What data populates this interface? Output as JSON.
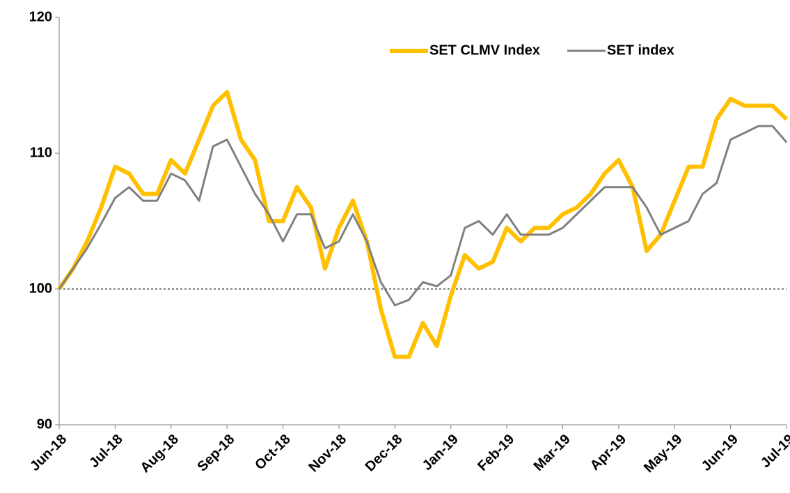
{
  "chart_data": {
    "type": "line",
    "categories": [
      "Jun-18",
      null,
      null,
      null,
      "Jul-18",
      null,
      null,
      null,
      "Aug-18",
      null,
      null,
      null,
      "Sep-18",
      null,
      null,
      null,
      "Oct-18",
      null,
      null,
      null,
      "Nov-18",
      null,
      null,
      null,
      "Dec-18",
      null,
      null,
      null,
      "Jan-19",
      null,
      null,
      null,
      "Feb-19",
      null,
      null,
      null,
      "Mar-19",
      null,
      null,
      null,
      "Apr-19",
      null,
      null,
      null,
      "May-19",
      null,
      null,
      null,
      "Jun-19",
      null,
      null,
      null,
      "Jul-19"
    ],
    "series": [
      {
        "name": "SET CLMV Index",
        "color": "#ffc000",
        "width": 6,
        "values": [
          100,
          101.5,
          103.5,
          106,
          109,
          108.5,
          107,
          107,
          109.5,
          108.5,
          111,
          113.5,
          114.5,
          111,
          109.5,
          105,
          105,
          107.5,
          106,
          101.5,
          104.5,
          106.5,
          103.5,
          98.5,
          95,
          95,
          97.5,
          95.8,
          99.5,
          102.5,
          101.5,
          102,
          104.5,
          103.5,
          104.5,
          104.5,
          105.5,
          106,
          107,
          108.5,
          109.5,
          107.5,
          102.8,
          104,
          106.5,
          109,
          109,
          112.5,
          114,
          113.5,
          113.5,
          113.5,
          112.5
        ]
      },
      {
        "name": "SET index",
        "color": "#808080",
        "width": 3,
        "values": [
          100,
          101.5,
          103,
          104.8,
          106.7,
          107.5,
          106.5,
          106.5,
          108.5,
          108,
          106.5,
          110.5,
          111,
          109,
          107,
          105.5,
          103.5,
          105.5,
          105.5,
          103,
          103.5,
          105.5,
          103.5,
          100.5,
          98.8,
          99.2,
          100.5,
          100.2,
          101,
          104.5,
          105,
          104,
          105.5,
          104,
          104,
          104,
          104.5,
          105.5,
          106.5,
          107.5,
          107.5,
          107.5,
          106,
          104,
          104.5,
          105,
          107,
          107.8,
          111,
          111.5,
          112,
          112,
          110.8
        ]
      }
    ],
    "ylim": [
      90,
      120
    ],
    "yticks": [
      90,
      100,
      110,
      120
    ],
    "reference_line": 100,
    "legend": "top-right",
    "grid": false
  }
}
